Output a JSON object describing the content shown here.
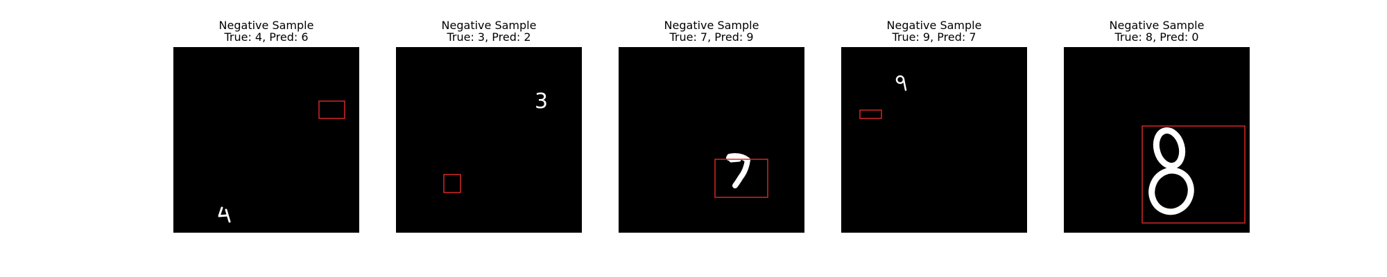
{
  "colors": {
    "background": "#000000",
    "digit": "#ffffff",
    "box": "#d62728"
  },
  "samples": [
    {
      "title": "Negative Sample",
      "subtitle": "True: 4, Pred: 6",
      "digit": "4"
    },
    {
      "title": "Negative Sample",
      "subtitle": "True: 3, Pred: 2",
      "digit": "3"
    },
    {
      "title": "Negative Sample",
      "subtitle": "True: 7, Pred: 9",
      "digit": "7"
    },
    {
      "title": "Negative Sample",
      "subtitle": "True: 9, Pred: 7",
      "digit": "9"
    },
    {
      "title": "Negative Sample",
      "subtitle": "True: 8, Pred: 0",
      "digit": "8"
    }
  ]
}
